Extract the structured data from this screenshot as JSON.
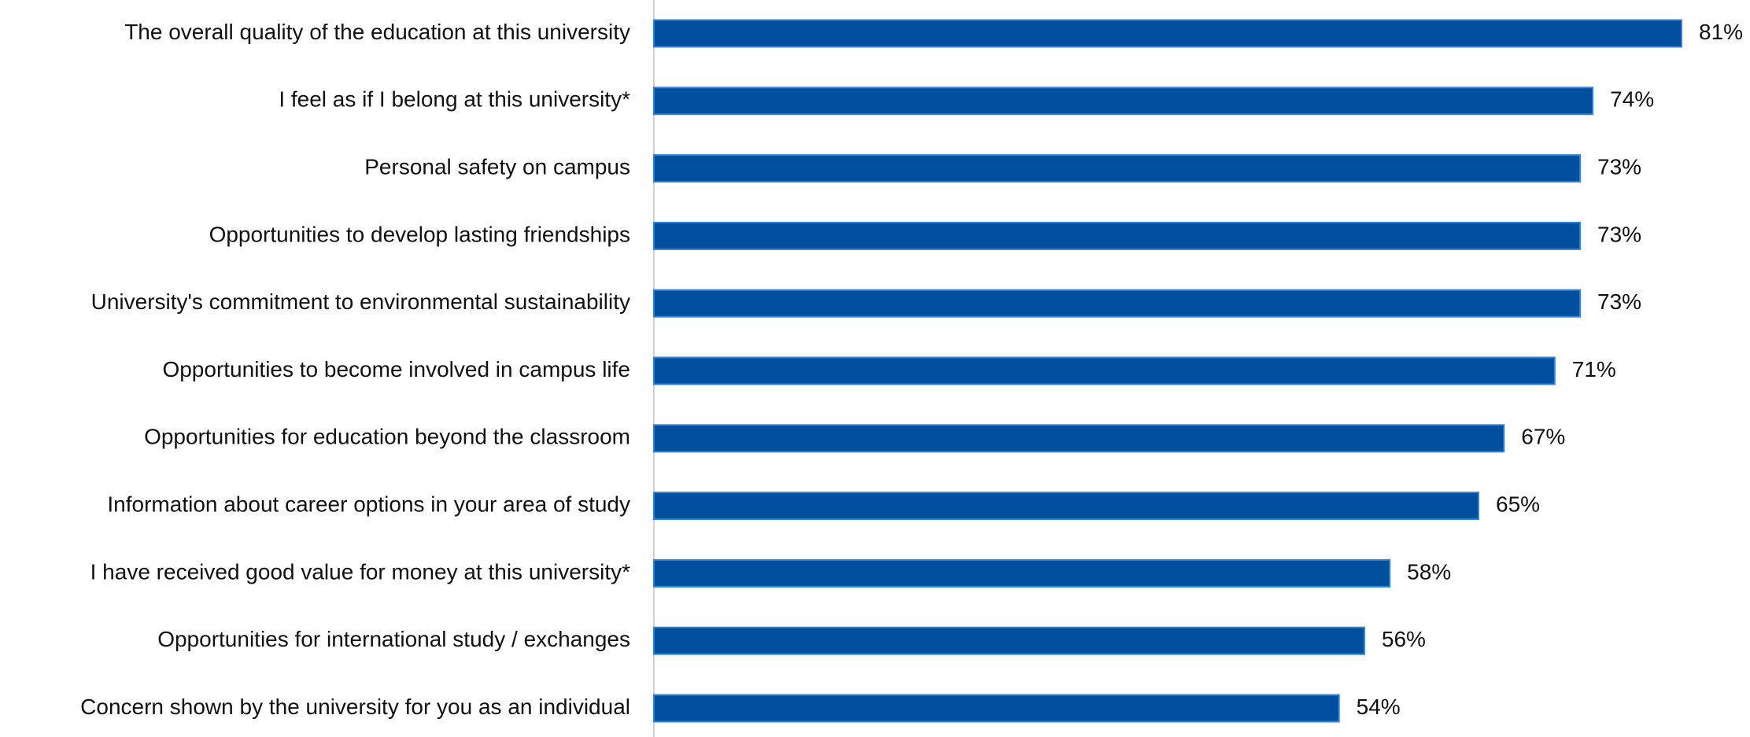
{
  "chart_data": {
    "type": "hbar",
    "categories": [
      "The overall quality of the education at this university",
      "I feel as if I belong at this university*",
      "Personal safety on campus",
      "Opportunities to develop lasting friendships",
      "University's commitment to environmental sustainability",
      "Opportunities to become involved in campus life",
      "Opportunities for education beyond the classroom",
      "Information about career options in your area of study",
      "I have received good value for money at this university*",
      "Opportunities for international study / exchanges",
      "Concern shown by the university for you as an individual"
    ],
    "values": [
      81,
      74,
      73,
      73,
      73,
      71,
      67,
      65,
      58,
      56,
      54
    ],
    "value_labels": [
      "81%",
      "74%",
      "73%",
      "73%",
      "73%",
      "71%",
      "67%",
      "65%",
      "58%",
      "56%",
      "54%"
    ],
    "color": "#004f9f"
  }
}
